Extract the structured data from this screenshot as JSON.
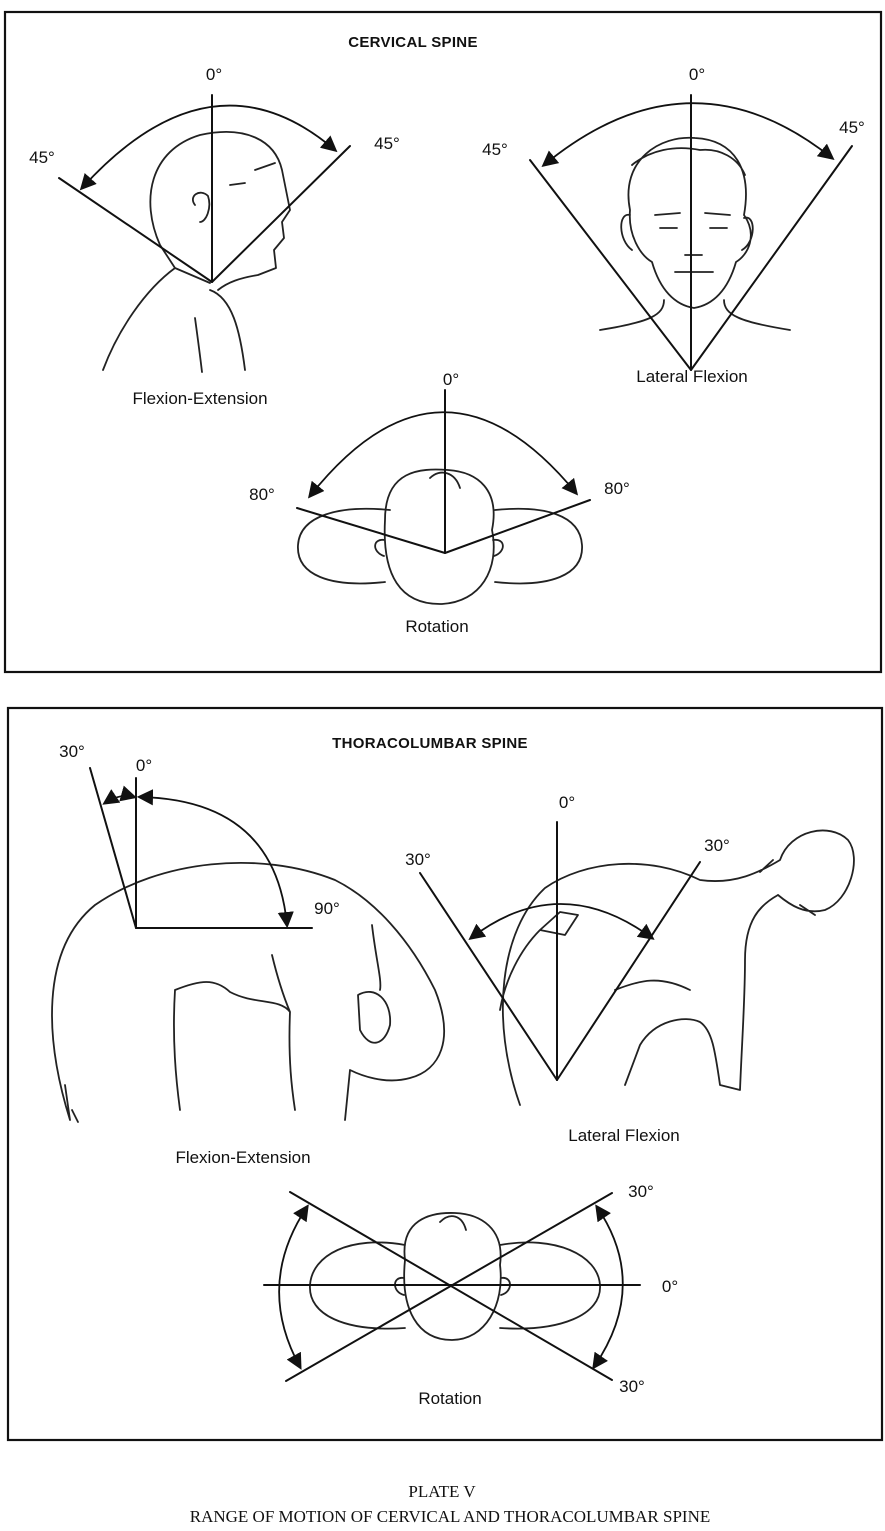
{
  "cervical": {
    "title": "CERVICAL SPINE",
    "flexion_extension": {
      "label": "Flexion-Extension",
      "top": "0°",
      "left": "45°",
      "right": "45°"
    },
    "lateral_flexion": {
      "label": "Lateral Flexion",
      "top": "0°",
      "left": "45°",
      "right": "45°"
    },
    "rotation": {
      "label": "Rotation",
      "top": "0°",
      "left": "80°",
      "right": "80°"
    }
  },
  "thoracolumbar": {
    "title": "THORACOLUMBAR SPINE",
    "flexion_extension": {
      "label": "Flexion-Extension",
      "back": "30°",
      "top": "0°",
      "forward": "90°"
    },
    "lateral_flexion": {
      "label": "Lateral Flexion",
      "top": "0°",
      "left": "30°",
      "right": "30°"
    },
    "rotation": {
      "label": "Rotation",
      "upper": "30°",
      "middle": "0°",
      "lower": "30°"
    }
  },
  "caption": {
    "plate": "PLATE V",
    "title": "RANGE OF MOTION OF CERVICAL AND THORACOLUMBAR SPINE"
  }
}
